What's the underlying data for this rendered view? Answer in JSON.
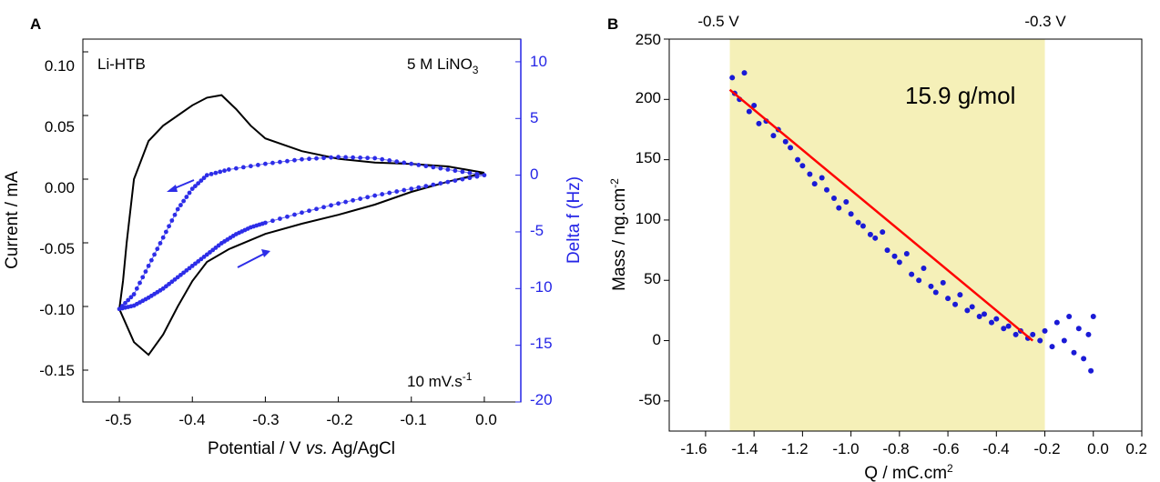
{
  "chart_data": [
    {
      "type": "line",
      "panel_label": "A",
      "xlabel_parts": [
        "Potential / V ",
        "vs.",
        " Ag/AgCl"
      ],
      "ylabel": "Current / mA",
      "y2label": "Delta f (Hz)",
      "xlim": [
        -0.55,
        0.05
      ],
      "ylim": [
        -0.175,
        0.11
      ],
      "y2lim": [
        -20,
        12
      ],
      "xticks": [
        "-0.5",
        "-0.4",
        "-0.3",
        "-0.2",
        "-0.1",
        "0.0"
      ],
      "yticks": [
        "0.10",
        "0.05",
        "0.00",
        "-0.05",
        "-0.10",
        "-0.15"
      ],
      "y2ticks": [
        "10",
        "5",
        "0",
        "-5",
        "-10",
        "-15",
        "-20"
      ],
      "annotations": {
        "sample": "Li-HTB",
        "electrolyte_prefix": "5 M LiNO",
        "electrolyte_sub": "3",
        "scan_rate_prefix": "10 mV.s",
        "scan_rate_sup": "-1"
      },
      "colors": {
        "cv": "#000000",
        "qcm": "#2d2de8",
        "right_axis": "#2525e6"
      },
      "series": [
        {
          "axis": "left",
          "cathodic_sweep": {
            "x": [
              0.0,
              -0.05,
              -0.1,
              -0.15,
              -0.2,
              -0.25,
              -0.3,
              -0.35,
              -0.38,
              -0.4,
              -0.42,
              -0.44,
              -0.46,
              -0.48,
              -0.5
            ],
            "y": [
              0.005,
              -0.002,
              -0.01,
              -0.02,
              -0.028,
              -0.035,
              -0.043,
              -0.055,
              -0.065,
              -0.08,
              -0.1,
              -0.122,
              -0.138,
              -0.128,
              -0.102
            ]
          },
          "anodic_sweep": {
            "x": [
              -0.5,
              -0.495,
              -0.49,
              -0.48,
              -0.46,
              -0.44,
              -0.42,
              -0.4,
              -0.38,
              -0.36,
              -0.34,
              -0.32,
              -0.3,
              -0.25,
              -0.2,
              -0.15,
              -0.1,
              -0.05,
              0.0
            ],
            "y": [
              -0.102,
              -0.08,
              -0.05,
              0.0,
              0.03,
              0.042,
              0.05,
              0.058,
              0.064,
              0.066,
              0.055,
              0.042,
              0.032,
              0.022,
              0.016,
              0.013,
              0.012,
              0.01,
              0.005
            ]
          }
        },
        {
          "axis": "right",
          "cathodic_sweep": {
            "x": [
              0.0,
              -0.05,
              -0.1,
              -0.15,
              -0.2,
              -0.25,
              -0.3,
              -0.35,
              -0.38,
              -0.4,
              -0.42,
              -0.44,
              -0.46,
              -0.48,
              -0.5
            ],
            "y": [
              0.0,
              0.5,
              1.0,
              1.5,
              1.6,
              1.4,
              1.0,
              0.5,
              0.0,
              -1.2,
              -3.0,
              -5.5,
              -8.0,
              -10.5,
              -11.8
            ]
          },
          "anodic_sweep": {
            "x": [
              -0.5,
              -0.48,
              -0.46,
              -0.44,
              -0.42,
              -0.4,
              -0.38,
              -0.36,
              -0.34,
              -0.32,
              -0.3,
              -0.25,
              -0.2,
              -0.15,
              -0.1,
              -0.05,
              0.0
            ],
            "y": [
              -11.8,
              -11.5,
              -10.8,
              -10.0,
              -9.0,
              -8.0,
              -7.0,
              -6.0,
              -5.2,
              -4.6,
              -4.2,
              -3.3,
              -2.5,
              -1.8,
              -1.2,
              -0.6,
              0.0
            ]
          }
        }
      ]
    },
    {
      "type": "scatter",
      "panel_label": "B",
      "xlabel": "Q / mC.cm",
      "xlabel_sup": "2",
      "ylabel": "Mass / ng.cm",
      "ylabel_sup": "-2",
      "xlim": [
        -1.75,
        0.2
      ],
      "ylim": [
        -75,
        250
      ],
      "xticks": [
        "-1.6",
        "-1.4",
        "-1.2",
        "-1.0",
        "-0.8",
        "-0.6",
        "-0.4",
        "-0.2",
        "0.0",
        "0.2"
      ],
      "yticks": [
        "250",
        "200",
        "150",
        "100",
        "50",
        "0",
        "-50"
      ],
      "shaded_region": {
        "x": [
          -1.5,
          -0.2
        ],
        "color": "#f5f0b8"
      },
      "region_labels": [
        {
          "text": "-0.5 V",
          "x": -1.5
        },
        {
          "text": "-0.3 V",
          "x": -0.2
        }
      ],
      "fit_label": "15.9 g/mol",
      "fit_line": {
        "x": [
          -1.5,
          -0.25
        ],
        "y": [
          208,
          0
        ],
        "color": "#ff0000"
      },
      "series": [
        {
          "color": "#1a1ad6",
          "points_x": [
            -1.49,
            -1.48,
            -1.46,
            -1.44,
            -1.42,
            -1.4,
            -1.38,
            -1.35,
            -1.32,
            -1.3,
            -1.27,
            -1.25,
            -1.22,
            -1.2,
            -1.17,
            -1.15,
            -1.12,
            -1.1,
            -1.07,
            -1.05,
            -1.02,
            -1.0,
            -0.97,
            -0.95,
            -0.92,
            -0.9,
            -0.87,
            -0.85,
            -0.82,
            -0.8,
            -0.77,
            -0.75,
            -0.72,
            -0.7,
            -0.67,
            -0.65,
            -0.62,
            -0.6,
            -0.57,
            -0.55,
            -0.52,
            -0.5,
            -0.47,
            -0.45,
            -0.42,
            -0.4,
            -0.37,
            -0.35,
            -0.32,
            -0.3,
            -0.27,
            -0.25,
            -0.22,
            -0.2,
            -0.17,
            -0.15,
            -0.12,
            -0.1,
            -0.08,
            -0.06,
            -0.04,
            -0.02,
            -0.01,
            0.0
          ],
          "points_y": [
            218,
            205,
            200,
            222,
            190,
            195,
            180,
            182,
            170,
            175,
            165,
            160,
            150,
            145,
            138,
            130,
            135,
            125,
            118,
            110,
            115,
            105,
            98,
            95,
            88,
            85,
            90,
            75,
            70,
            65,
            72,
            55,
            50,
            60,
            45,
            40,
            48,
            35,
            30,
            38,
            25,
            28,
            20,
            22,
            15,
            18,
            10,
            12,
            5,
            8,
            2,
            5,
            0,
            8,
            -5,
            15,
            0,
            20,
            -10,
            10,
            -15,
            5,
            -25,
            20
          ]
        }
      ]
    }
  ]
}
